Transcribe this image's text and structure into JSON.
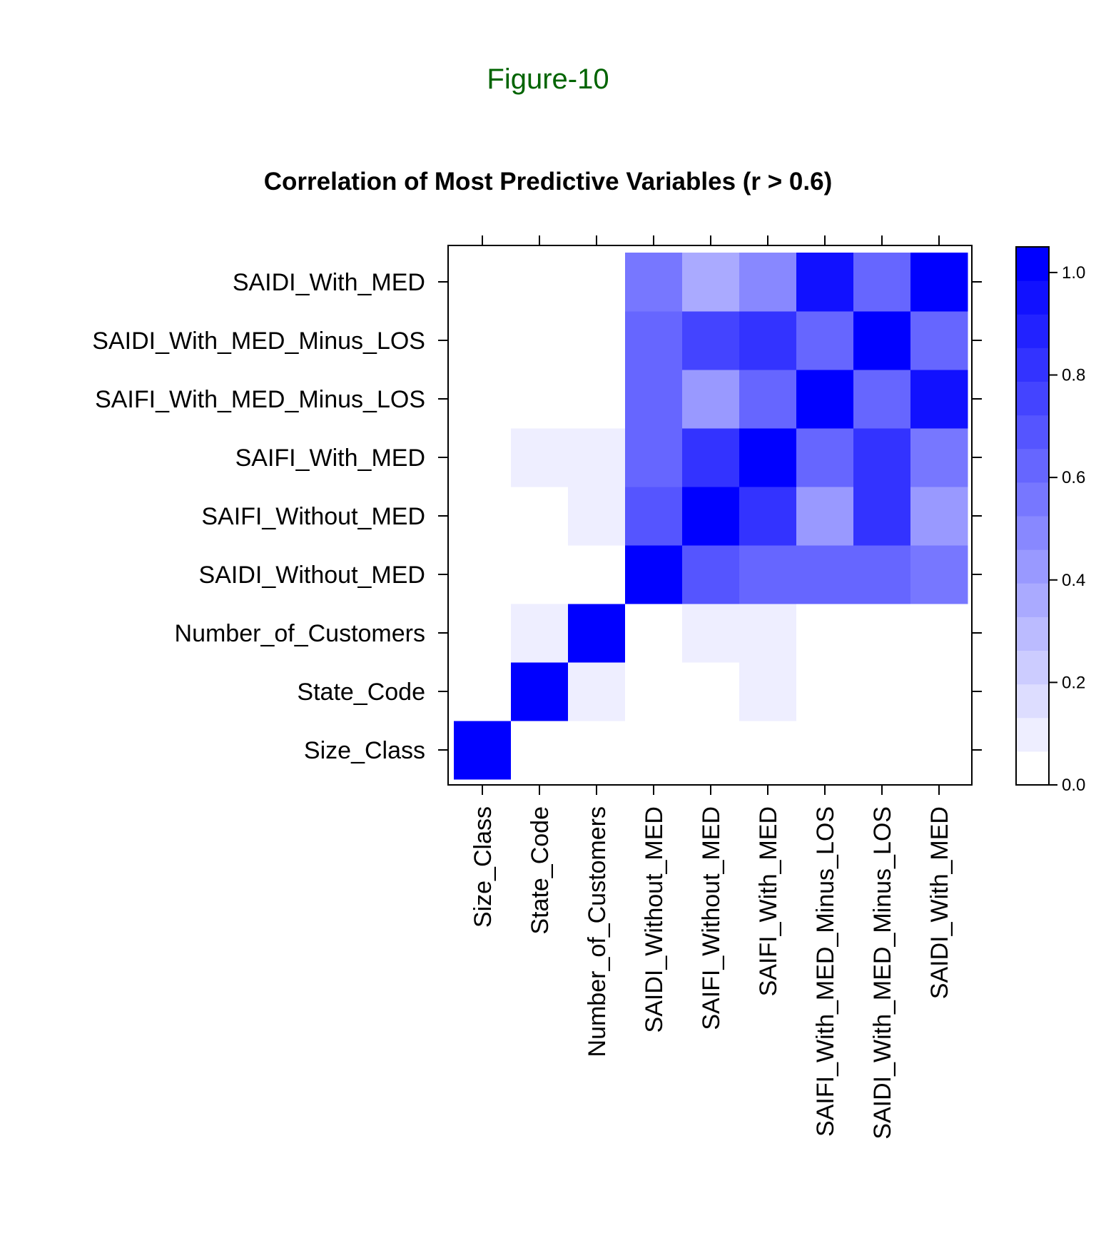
{
  "figure_label": "Figure-10",
  "colors": {
    "figure_label": "#006400",
    "high": "#0000ff",
    "low": "#ffffff",
    "frame": "#000000"
  },
  "chart_data": {
    "type": "heatmap",
    "title": "Correlation of Most Predictive Variables (r > 0.6)",
    "x_categories": [
      "Size_Class",
      "State_Code",
      "Number_of_Customers",
      "SAIDI_Without_MED",
      "SAIFI_Without_MED",
      "SAIFI_With_MED",
      "SAIFI_With_MED_Minus_LOS",
      "SAIDI_With_MED_Minus_LOS",
      "SAIDI_With_MED"
    ],
    "y_categories": [
      "Size_Class",
      "State_Code",
      "Number_of_Customers",
      "SAIDI_Without_MED",
      "SAIFI_Without_MED",
      "SAIFI_With_MED",
      "SAIFI_With_MED_Minus_LOS",
      "SAIDI_With_MED_Minus_LOS",
      "SAIDI_With_MED"
    ],
    "values": [
      [
        1.0,
        0.0,
        0.0,
        0.0,
        0.0,
        0.0,
        0.0,
        0.0,
        0.0
      ],
      [
        0.0,
        1.0,
        0.1,
        0.05,
        0.05,
        0.1,
        0.0,
        0.05,
        0.05
      ],
      [
        0.0,
        0.1,
        1.0,
        0.05,
        0.1,
        0.1,
        0.05,
        0.05,
        0.05
      ],
      [
        0.0,
        0.05,
        0.05,
        1.0,
        0.7,
        0.6,
        0.6,
        0.6,
        0.55
      ],
      [
        0.0,
        0.05,
        0.1,
        0.7,
        1.0,
        0.85,
        0.4,
        0.8,
        0.4
      ],
      [
        0.0,
        0.1,
        0.1,
        0.6,
        0.85,
        1.0,
        0.6,
        0.85,
        0.55
      ],
      [
        0.0,
        0.0,
        0.05,
        0.6,
        0.4,
        0.6,
        1.0,
        0.6,
        0.95
      ],
      [
        0.0,
        0.05,
        0.05,
        0.6,
        0.75,
        0.85,
        0.6,
        1.0,
        0.6
      ],
      [
        0.0,
        0.05,
        0.05,
        0.55,
        0.35,
        0.5,
        0.95,
        0.6,
        1.0
      ]
    ],
    "colorbar": {
      "range": [
        0.0,
        1.05
      ],
      "ticks": [
        0.0,
        0.2,
        0.4,
        0.6,
        0.8,
        1.0
      ],
      "tick_labels": [
        "0.0",
        "0.2",
        "0.4",
        "0.6",
        "0.8",
        "1.0"
      ],
      "levels": 16
    }
  }
}
